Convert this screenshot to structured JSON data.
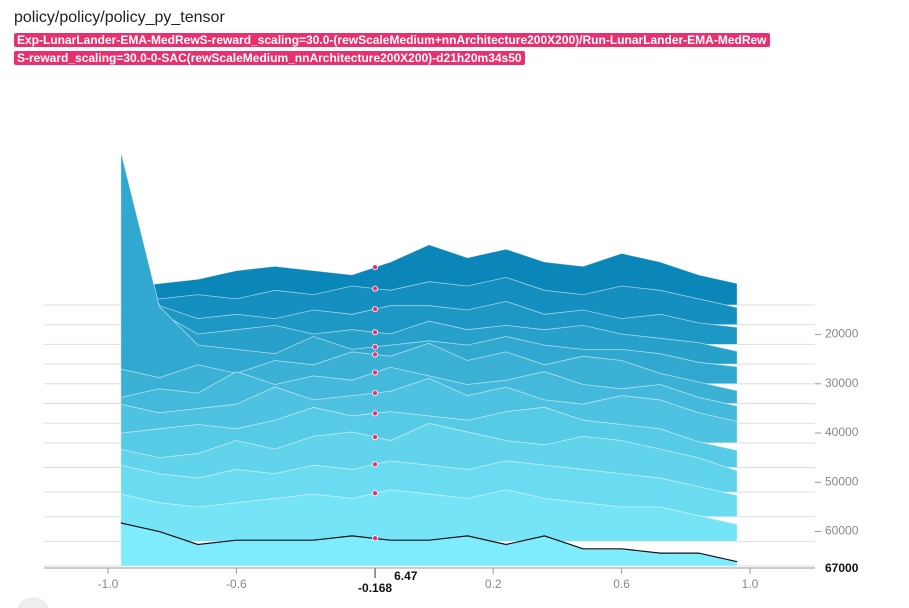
{
  "header": {
    "title": "policy/policy/policy_py_tensor",
    "run": "Exp-LunarLander-EMA-MedRewS-reward_scaling=30.0-(rewScaleMedium+nnArchitecture200X200)/Run-LunarLander-EMA-MedRewS-reward_scaling=30.0-0-SAC(rewScaleMedium_nnArchitecture200X200)-d21h20m34s50"
  },
  "chart_data": {
    "type": "ridgeline",
    "x": [
      -0.96,
      -0.84,
      -0.72,
      -0.6,
      -0.48,
      -0.36,
      -0.24,
      -0.12,
      0,
      0.12,
      0.24,
      0.36,
      0.48,
      0.6,
      0.72,
      0.84,
      0.96
    ],
    "xlim": [
      -1.0,
      1.0
    ],
    "xticks": [
      {
        "value": -1.0,
        "label": "-1.0"
      },
      {
        "value": -0.6,
        "label": "-0.6"
      },
      {
        "value": 0.2,
        "label": "0.2"
      },
      {
        "value": 0.6,
        "label": "0.6"
      },
      {
        "value": 1.0,
        "label": "1.0"
      }
    ],
    "ylim": [
      14000,
      67000
    ],
    "yticks": [
      20000,
      30000,
      40000,
      50000,
      60000
    ],
    "zlim": [
      0,
      60
    ],
    "color_range": [
      "#0a86b9",
      "#7eecfc"
    ],
    "series": [
      {
        "step": 14000,
        "values": [
          4,
          5,
          6,
          8,
          9,
          8,
          7,
          10,
          14,
          11,
          13,
          10,
          9,
          12,
          10,
          7,
          5
        ]
      },
      {
        "step": 18000,
        "values": [
          8,
          6,
          7,
          6,
          8,
          7,
          9,
          8,
          10,
          9,
          11,
          8,
          7,
          9,
          8,
          6,
          4
        ]
      },
      {
        "step": 22000,
        "values": [
          30,
          9,
          6,
          7,
          6,
          8,
          7,
          9,
          9,
          8,
          10,
          7,
          8,
          6,
          7,
          5,
          4
        ]
      },
      {
        "step": 26000,
        "values": [
          35,
          12,
          7,
          8,
          9,
          7,
          8,
          7,
          10,
          8,
          9,
          8,
          9,
          7,
          6,
          5,
          3
        ]
      },
      {
        "step": 30000,
        "values": [
          54,
          18,
          9,
          8,
          7,
          11,
          8,
          9,
          10,
          9,
          11,
          9,
          8,
          8,
          7,
          5,
          4
        ]
      },
      {
        "step": 34000,
        "values": [
          8,
          6,
          9,
          7,
          10,
          9,
          12,
          11,
          14,
          10,
          12,
          9,
          11,
          10,
          7,
          5,
          3
        ]
      },
      {
        "step": 38000,
        "values": [
          6,
          8,
          7,
          12,
          9,
          11,
          10,
          13,
          11,
          9,
          10,
          12,
          9,
          8,
          9,
          6,
          4
        ]
      },
      {
        "step": 42000,
        "values": [
          9,
          7,
          8,
          9,
          13,
          10,
          11,
          12,
          15,
          11,
          13,
          10,
          9,
          11,
          10,
          7,
          5
        ]
      },
      {
        "step": 47000,
        "values": [
          8,
          9,
          10,
          9,
          11,
          14,
          12,
          13,
          12,
          11,
          13,
          14,
          11,
          10,
          9,
          6,
          4
        ]
      },
      {
        "step": 52000,
        "values": [
          10,
          8,
          9,
          12,
          10,
          13,
          14,
          12,
          16,
          14,
          12,
          11,
          13,
          12,
          10,
          8,
          5
        ]
      },
      {
        "step": 57000,
        "values": [
          12,
          10,
          9,
          11,
          10,
          12,
          11,
          13,
          12,
          11,
          13,
          12,
          11,
          10,
          9,
          7,
          5
        ]
      },
      {
        "step": 62000,
        "values": [
          11,
          9,
          8,
          9,
          10,
          11,
          10,
          12,
          11,
          10,
          12,
          10,
          9,
          8,
          8,
          6,
          4
        ]
      },
      {
        "step": 67000,
        "values": [
          10,
          8,
          5,
          6,
          6,
          6,
          7,
          6,
          6,
          7,
          5,
          7,
          4,
          4,
          3,
          3,
          1
        ]
      }
    ],
    "hover": {
      "x": -0.168,
      "value": 6.47,
      "step": 67000
    }
  }
}
